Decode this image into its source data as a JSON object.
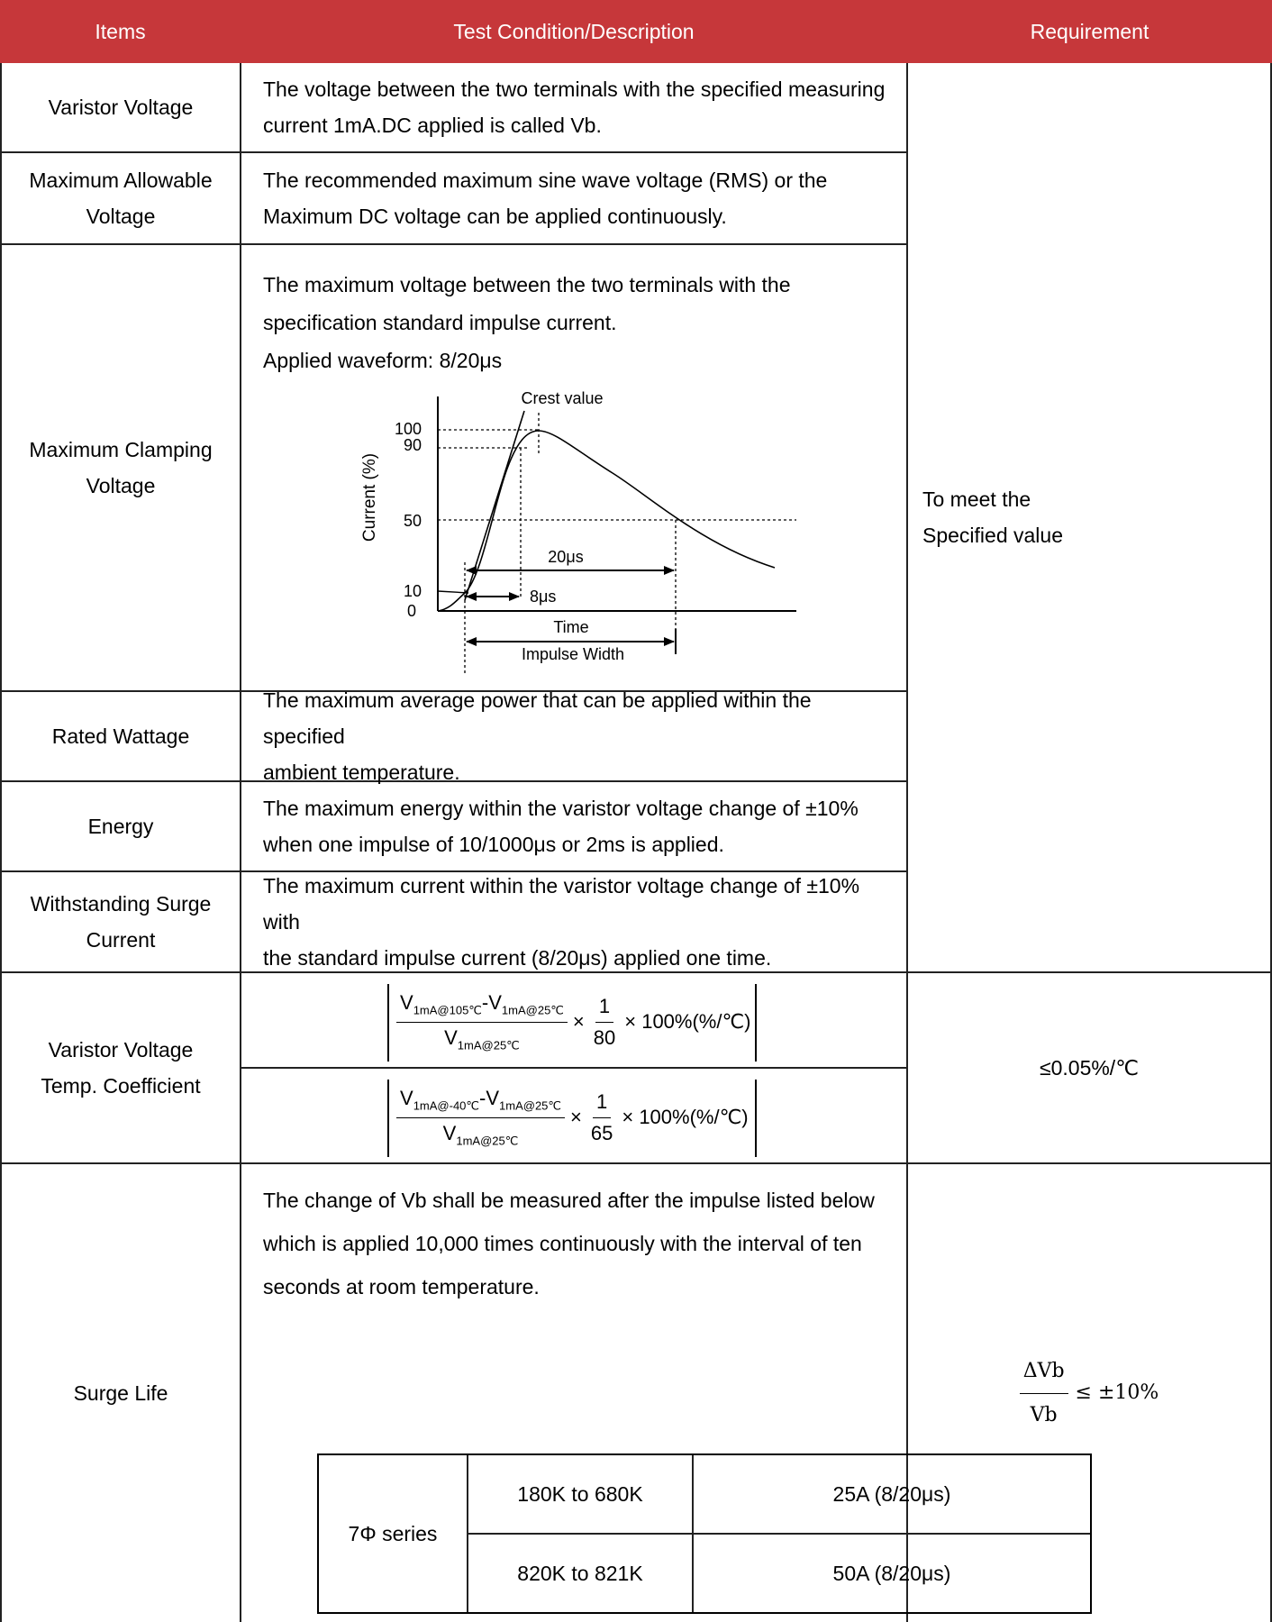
{
  "header": {
    "items": "Items",
    "description": "Test Condition/Description",
    "requirement": "Requirement"
  },
  "rows": {
    "varistor_voltage": {
      "item": "Varistor Voltage",
      "line1": "The voltage between the two terminals with the specified measuring",
      "line2": "current 1mA.DC applied is called Vb."
    },
    "max_allowable": {
      "item_line1": "Maximum Allowable",
      "item_line2": "Voltage",
      "line1": "The recommended maximum sine wave voltage (RMS) or the",
      "line2": "Maximum DC voltage can be applied continuously."
    },
    "max_clamping": {
      "item_line1": "Maximum Clamping",
      "item_line2": "Voltage",
      "line1": "The maximum voltage between the two terminals with the",
      "line2": "specification standard impulse current.",
      "line3": "Applied waveform: 8/20μs"
    },
    "rated_wattage": {
      "item": "Rated Wattage",
      "line1": "The maximum average power that can be applied within the specified",
      "line2": "ambient temperature."
    },
    "energy": {
      "item": "Energy",
      "line1": "The maximum energy within the varistor voltage change of ±10%",
      "line2": "when one impulse of 10/1000μs or 2ms is applied."
    },
    "withstanding": {
      "item_line1": "Withstanding Surge",
      "item_line2": "Current",
      "line1": "The maximum current within the varistor voltage change of ±10% with",
      "line2": "the standard impulse current (8/20μs) applied one time."
    },
    "temp_coeff": {
      "item_line1": "Varistor Voltage",
      "item_line2": "Temp. Coefficient",
      "f1_num_a": "V",
      "f1_num_a_sub": "1mA@105℃",
      "f1_num_b": "-V",
      "f1_num_b_sub": "1mA@25℃",
      "f1_den": "V",
      "f1_den_sub": "1mA@25℃",
      "f1_mult": "×",
      "f1_one": "1",
      "f1_n": "80",
      "f1_tail": "× 100%(%/℃)",
      "f2_num_a": "V",
      "f2_num_a_sub": "1mA@-40℃",
      "f2_num_b": "-V",
      "f2_num_b_sub": "1mA@25℃",
      "f2_den": "V",
      "f2_den_sub": "1mA@25℃",
      "f2_mult": "×",
      "f2_one": "1",
      "f2_n": "65",
      "f2_tail": "× 100%(%/℃)",
      "requirement": "≤0.05%/℃"
    },
    "surge_life": {
      "item": "Surge Life",
      "line1": "The change of Vb shall be measured after the impulse listed below",
      "line2": "which is applied 10,000 times continuously with the interval of ten",
      "line3": "seconds at room temperature.",
      "req_num": "ΔVb",
      "req_den": "Vb",
      "req_tail": "≤ ±10%",
      "table": {
        "series": "7Φ series",
        "r1_range": "180K to 680K",
        "r1_current": "25A (8/20μs)",
        "r2_range": "820K to 821K",
        "r2_current": "50A (8/20μs)"
      }
    }
  },
  "merged_requirement": {
    "line1": "To meet the",
    "line2": "Specified value"
  },
  "waveform_diagram": {
    "crest_label": "Crest value",
    "y_axis_label": "Current (%)",
    "y_ticks": [
      "100",
      "90",
      "50",
      "10",
      "0"
    ],
    "label_20us": "20μs",
    "label_8us": "8μs",
    "time_label": "Time",
    "impulse_label": "Impulse Width"
  }
}
